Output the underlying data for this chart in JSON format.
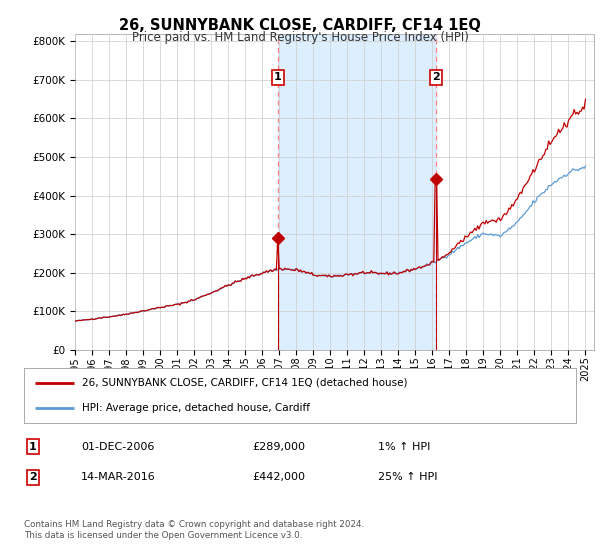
{
  "title": "26, SUNNYBANK CLOSE, CARDIFF, CF14 1EQ",
  "subtitle": "Price paid vs. HM Land Registry's House Price Index (HPI)",
  "ylabel_ticks": [
    "£0",
    "£100K",
    "£200K",
    "£300K",
    "£400K",
    "£500K",
    "£600K",
    "£700K",
    "£800K"
  ],
  "ytick_values": [
    0,
    100000,
    200000,
    300000,
    400000,
    500000,
    600000,
    700000,
    800000
  ],
  "ylim": [
    0,
    820000
  ],
  "xlim_start": 1995.0,
  "xlim_end": 2025.5,
  "xtick_years": [
    1995,
    1996,
    1997,
    1998,
    1999,
    2000,
    2001,
    2002,
    2003,
    2004,
    2005,
    2006,
    2007,
    2008,
    2009,
    2010,
    2011,
    2012,
    2013,
    2014,
    2015,
    2016,
    2017,
    2018,
    2019,
    2020,
    2021,
    2022,
    2023,
    2024,
    2025
  ],
  "hpi_color": "#5b9bd5",
  "sale_color": "#c00000",
  "dashed_vline_color": "#ff8080",
  "shade_color": "#ddeeff",
  "marker1_year": 2006.92,
  "marker1_price": 289000,
  "marker2_year": 2016.21,
  "marker2_price": 442000,
  "legend_label1": "26, SUNNYBANK CLOSE, CARDIFF, CF14 1EQ (detached house)",
  "legend_label2": "HPI: Average price, detached house, Cardiff",
  "table_row1": [
    "1",
    "01-DEC-2006",
    "£289,000",
    "1% ↑ HPI"
  ],
  "table_row2": [
    "2",
    "14-MAR-2016",
    "£442,000",
    "25% ↑ HPI"
  ],
  "footer": "Contains HM Land Registry data © Crown copyright and database right 2024.\nThis data is licensed under the Open Government Licence v3.0.",
  "bg_color": "#ffffff",
  "grid_color": "#cccccc"
}
